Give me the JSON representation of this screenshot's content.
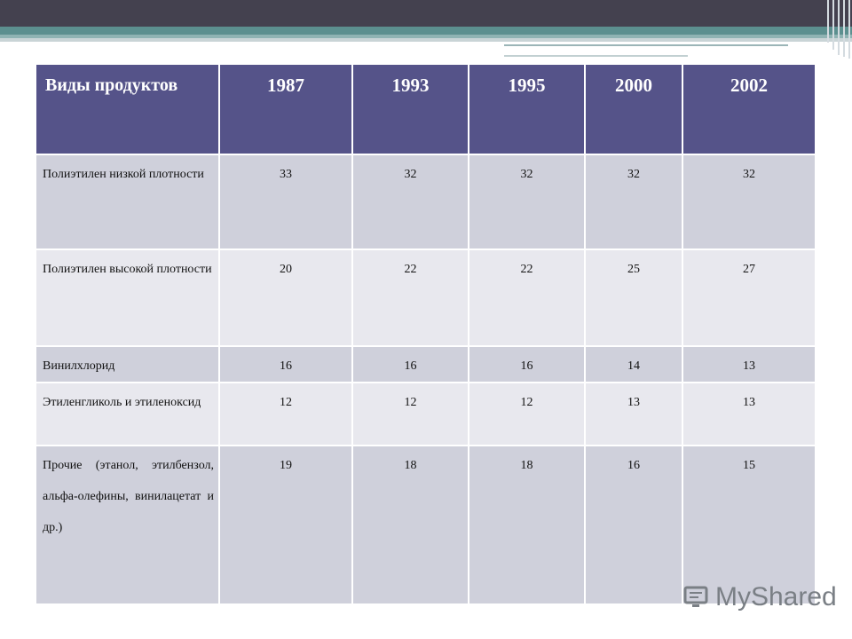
{
  "table": {
    "headers": [
      "Виды продуктов",
      "1987",
      "1993",
      "1995",
      "2000",
      "2002"
    ],
    "rows": [
      {
        "name": "Полиэтилен низкой плотности",
        "values": [
          "33",
          "32",
          "32",
          "32",
          "32"
        ]
      },
      {
        "name": "Полиэтилен высокой плотности",
        "values": [
          "20",
          "22",
          "22",
          "25",
          "27"
        ]
      },
      {
        "name": "Винилхлорид",
        "values": [
          "16",
          "16",
          "16",
          "14",
          "13"
        ]
      },
      {
        "name": "Этиленгликоль и этиленоксид",
        "values": [
          "12",
          "12",
          "12",
          "13",
          "13"
        ]
      },
      {
        "name": "Прочие (этанол, этилбензол, альфа-олефины, винилацетат и др.)",
        "values": [
          "19",
          "18",
          "18",
          "16",
          "15"
        ]
      }
    ]
  },
  "watermark": {
    "text": "MyShared",
    "icon": "monitor-icon"
  },
  "colors": {
    "header": "#555389",
    "row_dark": "#cfd0db",
    "row_light": "#e8e8ee",
    "topbar": "#44414f",
    "accent": "#5c8f8f"
  }
}
